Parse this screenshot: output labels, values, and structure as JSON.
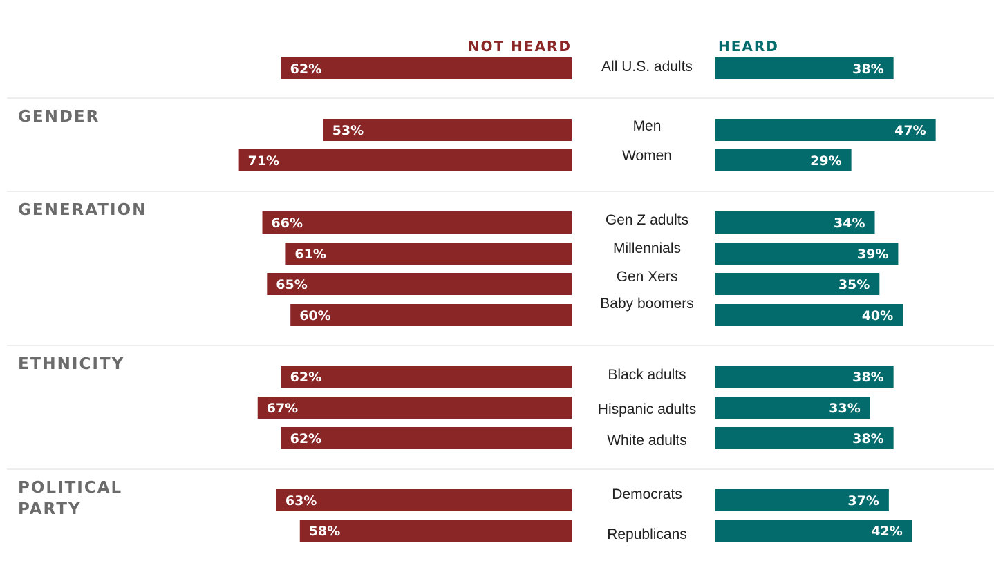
{
  "chart_data": {
    "type": "bar",
    "orientation": "diverging-horizontal",
    "legend": {
      "not_heard": "NOT HEARD",
      "heard": "HEARD"
    },
    "colors": {
      "not_heard": "#8a2626",
      "heard": "#036b6b",
      "group_label": "#6b6b6b",
      "divider": "#dddddd"
    },
    "xlim": [
      0,
      100
    ],
    "groups": [
      {
        "label_lines": [],
        "rows": [
          {
            "label": "All U.S. adults",
            "not_heard": 62,
            "heard": 38,
            "not_heard_label": "62%",
            "heard_label": "38%"
          }
        ]
      },
      {
        "label_lines": [
          "GENDER"
        ],
        "rows": [
          {
            "label": "Men",
            "not_heard": 53,
            "heard": 47,
            "not_heard_label": "53%",
            "heard_label": "47%"
          },
          {
            "label": "Women",
            "not_heard": 71,
            "heard": 29,
            "not_heard_label": "71%",
            "heard_label": "29%"
          }
        ]
      },
      {
        "label_lines": [
          "GENERATION"
        ],
        "rows": [
          {
            "label": "Gen Z adults",
            "not_heard": 66,
            "heard": 34,
            "not_heard_label": "66%",
            "heard_label": "34%"
          },
          {
            "label": "Millennials",
            "not_heard": 61,
            "heard": 39,
            "not_heard_label": "61%",
            "heard_label": "39%"
          },
          {
            "label": "Gen Xers",
            "not_heard": 65,
            "heard": 35,
            "not_heard_label": "65%",
            "heard_label": "35%"
          },
          {
            "label": "Baby boomers",
            "not_heard": 60,
            "heard": 40,
            "not_heard_label": "60%",
            "heard_label": "40%"
          }
        ]
      },
      {
        "label_lines": [
          "ETHNICITY"
        ],
        "rows": [
          {
            "label": "Black adults",
            "not_heard": 62,
            "heard": 38,
            "not_heard_label": "62%",
            "heard_label": "38%"
          },
          {
            "label": "Hispanic adults",
            "not_heard": 67,
            "heard": 33,
            "not_heard_label": "67%",
            "heard_label": "33%"
          },
          {
            "label": "White adults",
            "not_heard": 62,
            "heard": 38,
            "not_heard_label": "62%",
            "heard_label": "38%"
          }
        ]
      },
      {
        "label_lines": [
          "POLITICAL",
          "PARTY"
        ],
        "rows": [
          {
            "label": "Democrats",
            "not_heard": 63,
            "heard": 37,
            "not_heard_label": "63%",
            "heard_label": "37%"
          },
          {
            "label": "Republicans",
            "not_heard": 58,
            "heard": 42,
            "not_heard_label": "58%",
            "heard_label": "42%"
          }
        ]
      }
    ]
  }
}
